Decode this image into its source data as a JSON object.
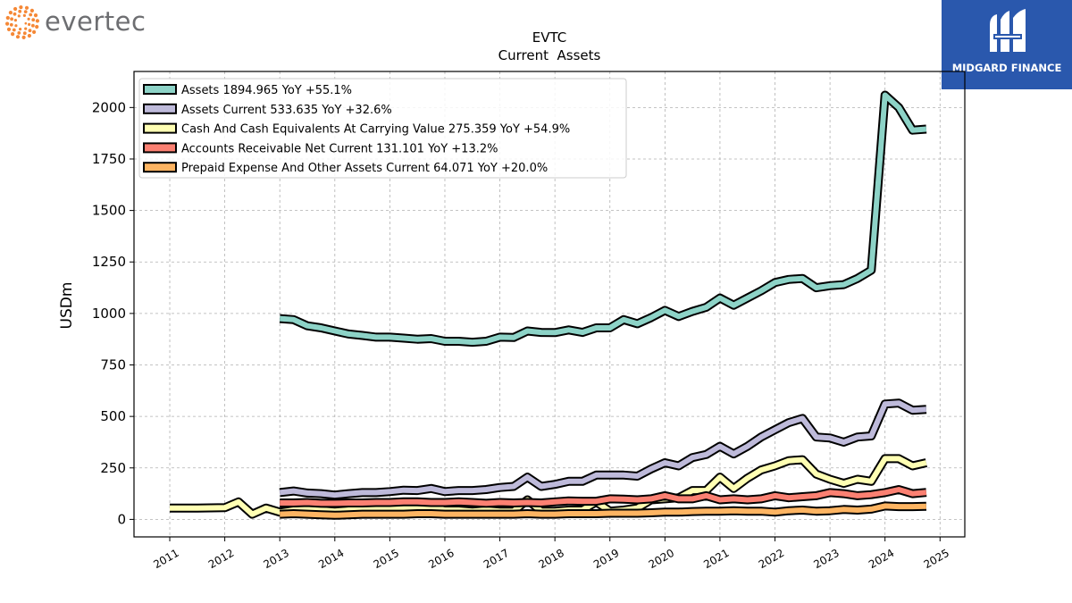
{
  "header": {
    "left_brand": "evertec",
    "right_brand": "MIDGARD FINANCE"
  },
  "colors": {
    "assets": "#8dd3c7",
    "assets_current": "#bebada",
    "cash": "#ffffb3",
    "receivables": "#fb8072",
    "prepaid": "#fdb462",
    "evertec_dots": "#f47b20",
    "midgard_bg": "#2a58ad"
  },
  "chart_data": {
    "type": "line",
    "title": "EVTC",
    "subtitle": "Current  Assets",
    "xlabel": "",
    "ylabel": "USDm",
    "xlim": [
      2010.35,
      2025.45
    ],
    "ylim": [
      -85,
      2175
    ],
    "x_ticks": [
      "2011",
      "2012",
      "2013",
      "2014",
      "2015",
      "2016",
      "2017",
      "2018",
      "2019",
      "2020",
      "2021",
      "2022",
      "2023",
      "2024",
      "2025"
    ],
    "y_ticks": [
      "0",
      "250",
      "500",
      "750",
      "1000",
      "1250",
      "1500",
      "1750",
      "2000"
    ],
    "grid": true,
    "legend_position": "top-left",
    "series": [
      {
        "name": "Assets  1894.965 YoY +55.1%",
        "key": "assets",
        "points": [
          [
            2013.0,
            975
          ],
          [
            2013.25,
            970
          ],
          [
            2013.5,
            940
          ],
          [
            2013.75,
            930
          ],
          [
            2014.0,
            915
          ],
          [
            2014.25,
            900
          ],
          [
            2014.5,
            893
          ],
          [
            2014.75,
            885
          ],
          [
            2015.0,
            885
          ],
          [
            2015.25,
            880
          ],
          [
            2015.5,
            875
          ],
          [
            2015.75,
            878
          ],
          [
            2016.0,
            865
          ],
          [
            2016.25,
            865
          ],
          [
            2016.5,
            860
          ],
          [
            2016.75,
            865
          ],
          [
            2017.0,
            885
          ],
          [
            2017.25,
            883
          ],
          [
            2017.5,
            915
          ],
          [
            2017.75,
            908
          ],
          [
            2018.0,
            907
          ],
          [
            2018.25,
            920
          ],
          [
            2018.5,
            908
          ],
          [
            2018.75,
            930
          ],
          [
            2019.0,
            930
          ],
          [
            2019.25,
            970
          ],
          [
            2019.5,
            950
          ],
          [
            2019.75,
            980
          ],
          [
            2020.0,
            1015
          ],
          [
            2020.25,
            985
          ],
          [
            2020.5,
            1010
          ],
          [
            2020.75,
            1030
          ],
          [
            2021.0,
            1075
          ],
          [
            2021.25,
            1040
          ],
          [
            2021.5,
            1075
          ],
          [
            2021.75,
            1110
          ],
          [
            2022.0,
            1150
          ],
          [
            2022.25,
            1165
          ],
          [
            2022.5,
            1170
          ],
          [
            2022.75,
            1125
          ],
          [
            2023.0,
            1135
          ],
          [
            2023.25,
            1140
          ],
          [
            2023.5,
            1170
          ],
          [
            2023.75,
            1210
          ],
          [
            2024.0,
            2060
          ],
          [
            2024.25,
            2000
          ],
          [
            2024.5,
            1890
          ],
          [
            2024.75,
            1895
          ]
        ]
      },
      {
        "name": "Assets Current  533.635 YoY +32.6%",
        "key": "assets_current",
        "points": [
          [
            2013.0,
            130
          ],
          [
            2013.25,
            138
          ],
          [
            2013.5,
            128
          ],
          [
            2013.75,
            125
          ],
          [
            2014.0,
            118
          ],
          [
            2014.25,
            125
          ],
          [
            2014.5,
            130
          ],
          [
            2014.75,
            130
          ],
          [
            2015.0,
            135
          ],
          [
            2015.25,
            142
          ],
          [
            2015.5,
            140
          ],
          [
            2015.75,
            150
          ],
          [
            2016.0,
            135
          ],
          [
            2016.25,
            140
          ],
          [
            2016.5,
            140
          ],
          [
            2016.75,
            145
          ],
          [
            2017.0,
            155
          ],
          [
            2017.25,
            160
          ],
          [
            2017.5,
            205
          ],
          [
            2017.75,
            160
          ],
          [
            2018.0,
            170
          ],
          [
            2018.25,
            185
          ],
          [
            2018.5,
            185
          ],
          [
            2018.75,
            215
          ],
          [
            2019.0,
            215
          ],
          [
            2019.25,
            215
          ],
          [
            2019.5,
            210
          ],
          [
            2019.75,
            245
          ],
          [
            2020.0,
            275
          ],
          [
            2020.25,
            260
          ],
          [
            2020.5,
            300
          ],
          [
            2020.75,
            315
          ],
          [
            2021.0,
            355
          ],
          [
            2021.25,
            318
          ],
          [
            2021.5,
            355
          ],
          [
            2021.75,
            400
          ],
          [
            2022.0,
            435
          ],
          [
            2022.25,
            470
          ],
          [
            2022.5,
            490
          ],
          [
            2022.75,
            400
          ],
          [
            2023.0,
            395
          ],
          [
            2023.25,
            375
          ],
          [
            2023.5,
            400
          ],
          [
            2023.75,
            405
          ],
          [
            2024.0,
            560
          ],
          [
            2024.25,
            565
          ],
          [
            2024.5,
            530
          ],
          [
            2024.75,
            534
          ]
        ]
      },
      {
        "name": "Cash And Cash Equivalents At Carrying Value  275.359 YoY +54.9%",
        "key": "cash",
        "points": [
          [
            2011.0,
            55
          ],
          [
            2011.5,
            55
          ],
          [
            2012.0,
            57
          ],
          [
            2012.25,
            85
          ],
          [
            2012.5,
            25
          ],
          [
            2012.75,
            55
          ],
          [
            2013.0,
            35
          ],
          [
            2013.25,
            45
          ],
          [
            2013.5,
            50
          ],
          [
            2013.75,
            45
          ],
          [
            2014.0,
            40
          ],
          [
            2014.25,
            45
          ],
          [
            2014.5,
            50
          ],
          [
            2014.75,
            50
          ],
          [
            2015.0,
            55
          ],
          [
            2015.25,
            55
          ],
          [
            2015.5,
            55
          ],
          [
            2015.75,
            60
          ],
          [
            2016.0,
            45
          ],
          [
            2016.25,
            45
          ],
          [
            2016.5,
            40
          ],
          [
            2016.75,
            45
          ],
          [
            2017.0,
            40
          ],
          [
            2017.25,
            40
          ],
          [
            2017.5,
            95
          ],
          [
            2017.75,
            40
          ],
          [
            2018.0,
            40
          ],
          [
            2018.25,
            45
          ],
          [
            2018.5,
            45
          ],
          [
            2018.75,
            85
          ],
          [
            2019.0,
            40
          ],
          [
            2019.25,
            45
          ],
          [
            2019.5,
            55
          ],
          [
            2019.75,
            95
          ],
          [
            2020.0,
            100
          ],
          [
            2020.25,
            105
          ],
          [
            2020.5,
            140
          ],
          [
            2020.75,
            140
          ],
          [
            2021.0,
            205
          ],
          [
            2021.25,
            150
          ],
          [
            2021.5,
            200
          ],
          [
            2021.75,
            240
          ],
          [
            2022.0,
            260
          ],
          [
            2022.25,
            285
          ],
          [
            2022.5,
            290
          ],
          [
            2022.75,
            220
          ],
          [
            2023.0,
            195
          ],
          [
            2023.25,
            175
          ],
          [
            2023.5,
            195
          ],
          [
            2023.75,
            185
          ],
          [
            2024.0,
            295
          ],
          [
            2024.25,
            295
          ],
          [
            2024.5,
            260
          ],
          [
            2024.75,
            275
          ]
        ]
      },
      {
        "name": "Accounts Receivable Net Current  131.101 YoY +13.2%",
        "key": "receivables",
        "points": [
          [
            2013.0,
            80
          ],
          [
            2013.25,
            80
          ],
          [
            2013.5,
            82
          ],
          [
            2013.75,
            78
          ],
          [
            2014.0,
            78
          ],
          [
            2014.25,
            80
          ],
          [
            2014.5,
            80
          ],
          [
            2014.75,
            82
          ],
          [
            2015.0,
            82
          ],
          [
            2015.25,
            85
          ],
          [
            2015.5,
            85
          ],
          [
            2015.75,
            82
          ],
          [
            2016.0,
            82
          ],
          [
            2016.25,
            85
          ],
          [
            2016.5,
            82
          ],
          [
            2016.75,
            78
          ],
          [
            2017.0,
            82
          ],
          [
            2017.25,
            80
          ],
          [
            2017.5,
            82
          ],
          [
            2017.75,
            80
          ],
          [
            2018.0,
            85
          ],
          [
            2018.25,
            90
          ],
          [
            2018.5,
            88
          ],
          [
            2018.75,
            88
          ],
          [
            2019.0,
            100
          ],
          [
            2019.25,
            98
          ],
          [
            2019.5,
            95
          ],
          [
            2019.75,
            100
          ],
          [
            2020.0,
            115
          ],
          [
            2020.25,
            100
          ],
          [
            2020.5,
            100
          ],
          [
            2020.75,
            115
          ],
          [
            2021.0,
            95
          ],
          [
            2021.25,
            100
          ],
          [
            2021.5,
            95
          ],
          [
            2021.75,
            100
          ],
          [
            2022.0,
            115
          ],
          [
            2022.25,
            105
          ],
          [
            2022.5,
            110
          ],
          [
            2022.75,
            115
          ],
          [
            2023.0,
            130
          ],
          [
            2023.25,
            125
          ],
          [
            2023.5,
            115
          ],
          [
            2023.75,
            120
          ],
          [
            2024.0,
            130
          ],
          [
            2024.25,
            145
          ],
          [
            2024.5,
            125
          ],
          [
            2024.75,
            131
          ]
        ]
      },
      {
        "name": "Prepaid Expense And Other Assets Current  64.071 YoY +20.0%",
        "key": "prepaid",
        "points": [
          [
            2013.0,
            25
          ],
          [
            2013.25,
            28
          ],
          [
            2013.5,
            25
          ],
          [
            2013.75,
            22
          ],
          [
            2014.0,
            20
          ],
          [
            2014.25,
            22
          ],
          [
            2014.5,
            25
          ],
          [
            2014.75,
            25
          ],
          [
            2015.0,
            25
          ],
          [
            2015.25,
            25
          ],
          [
            2015.5,
            28
          ],
          [
            2015.75,
            28
          ],
          [
            2016.0,
            25
          ],
          [
            2016.25,
            25
          ],
          [
            2016.5,
            25
          ],
          [
            2016.75,
            25
          ],
          [
            2017.0,
            25
          ],
          [
            2017.25,
            25
          ],
          [
            2017.5,
            28
          ],
          [
            2017.75,
            25
          ],
          [
            2018.0,
            25
          ],
          [
            2018.25,
            28
          ],
          [
            2018.5,
            28
          ],
          [
            2018.75,
            28
          ],
          [
            2019.0,
            30
          ],
          [
            2019.25,
            30
          ],
          [
            2019.5,
            30
          ],
          [
            2019.75,
            32
          ],
          [
            2020.0,
            35
          ],
          [
            2020.25,
            35
          ],
          [
            2020.5,
            38
          ],
          [
            2020.75,
            40
          ],
          [
            2021.0,
            40
          ],
          [
            2021.25,
            42
          ],
          [
            2021.5,
            40
          ],
          [
            2021.75,
            40
          ],
          [
            2022.0,
            35
          ],
          [
            2022.25,
            42
          ],
          [
            2022.5,
            45
          ],
          [
            2022.75,
            40
          ],
          [
            2023.0,
            42
          ],
          [
            2023.25,
            48
          ],
          [
            2023.5,
            45
          ],
          [
            2023.75,
            50
          ],
          [
            2024.0,
            65
          ],
          [
            2024.25,
            62
          ],
          [
            2024.5,
            62
          ],
          [
            2024.75,
            64
          ]
        ]
      }
    ]
  }
}
